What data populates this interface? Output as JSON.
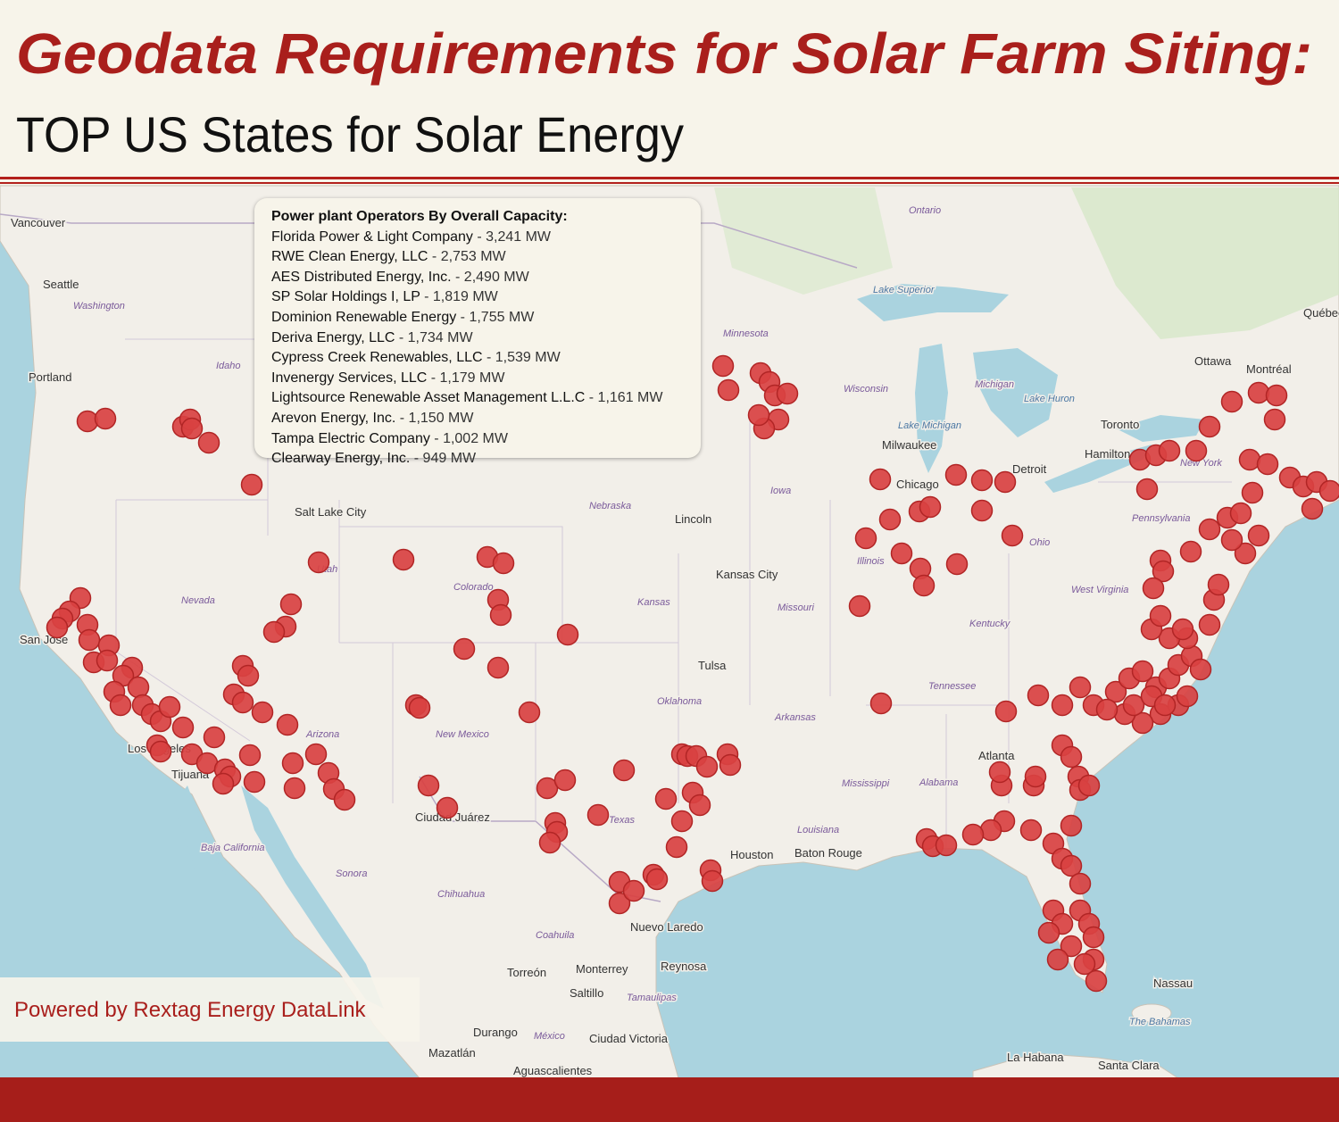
{
  "header": {
    "title": "Geodata Requirements for Solar Farm Siting:",
    "subtitle": "TOP US States for Solar Energy"
  },
  "legend": {
    "title": "Power plant Operators By Overall Capacity:",
    "operators": [
      {
        "name": "Florida Power & Light Company",
        "capacity": "3,241 MW"
      },
      {
        "name": "RWE Clean Energy, LLC",
        "capacity": "2,753 MW"
      },
      {
        "name": "AES Distributed Energy, Inc.",
        "capacity": "2,490 MW"
      },
      {
        "name": "SP Solar Holdings I, LP",
        "capacity": "1,819 MW"
      },
      {
        "name": "Dominion Renewable Energy",
        "capacity": "1,755 MW"
      },
      {
        "name": "Deriva Energy, LLC",
        "capacity": "1,734 MW"
      },
      {
        "name": "Cypress Creek Renewables, LLC",
        "capacity": "1,539 MW"
      },
      {
        "name": "Invenergy Services, LLC",
        "capacity": "1,179 MW"
      },
      {
        "name": "Lightsource Renewable Asset Management L.L.C",
        "capacity": "1,161 MW"
      },
      {
        "name": "Arevon Energy, Inc.",
        "capacity": "1,150 MW"
      },
      {
        "name": "Tampa Electric Company",
        "capacity": "1,002 MW"
      },
      {
        "name": "Clearway Energy, Inc.",
        "capacity": "949 MW"
      }
    ]
  },
  "map": {
    "labels": [
      "Vancouver",
      "Seattle",
      "Washington",
      "Portland",
      "Idaho",
      "Salt Lake City",
      "Utah",
      "Nevada",
      "San Jose",
      "Los Angeles",
      "Tijuana",
      "Arizona",
      "Colorado",
      "Nebraska",
      "Lincoln",
      "Kansas City",
      "Kansas",
      "Missouri",
      "Iowa",
      "Minnesota",
      "Tulsa",
      "Oklahoma",
      "Arkansas",
      "New Mexico",
      "Ciudad Juárez",
      "Texas",
      "Houston",
      "Baton Rouge",
      "Louisiana",
      "Mississippi",
      "Alabama",
      "Atlanta",
      "Tennessee",
      "Kentucky",
      "Illinois",
      "Chicago",
      "Milwaukee",
      "Wisconsin",
      "Michigan",
      "Detroit",
      "Ohio",
      "West Virginia",
      "Pennsylvania",
      "New York",
      "Toronto",
      "Hamilton",
      "Ottawa",
      "Montréal",
      "Québec",
      "Ontario",
      "Lake Superior",
      "Lake Michigan",
      "Lake Huron",
      "Baja California",
      "Sonora",
      "Chihuahua",
      "Coahuila",
      "Nuevo Laredo",
      "Reynosa",
      "Monterrey",
      "Torreón",
      "Saltillo",
      "Tamaulipas",
      "Durango",
      "México",
      "Ciudad Victoria",
      "Mazatlán",
      "Aguascalientes",
      "Nassau",
      "The Bahamas",
      "La Habana",
      "Santa Clara"
    ]
  },
  "footer": {
    "credit": "Powered by Rextag Energy DataLink"
  }
}
